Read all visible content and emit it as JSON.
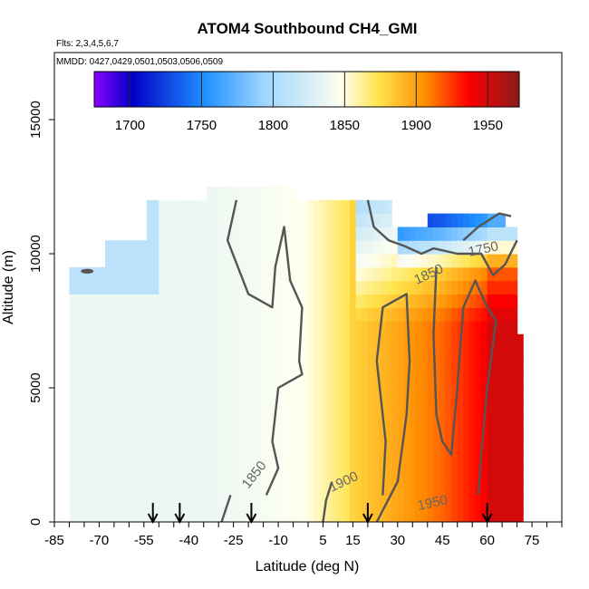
{
  "chart_data": {
    "type": "heatmap",
    "title": "ATOM4 Southbound CH4_GMI",
    "subtitle_flights": "Flts: 2,3,4,5,6,7",
    "subtitle_dates": "MMDD: 0427,0429,0501,0503,0506,0509",
    "xlabel": "Latitude (deg N)",
    "ylabel": "Altitude (m)",
    "xlim": [
      -85,
      85
    ],
    "ylim": [
      0,
      17500
    ],
    "x_ticks": [
      "-85",
      "-70",
      "-55",
      "-40",
      "-25",
      "-10",
      "5",
      "15",
      "30",
      "45",
      "60",
      "75"
    ],
    "y_ticks": [
      "0",
      "5000",
      "10000",
      "15000"
    ],
    "colorbar": {
      "range": [
        1675,
        1972
      ],
      "ticks": [
        "1700",
        "1750",
        "1800",
        "1850",
        "1900",
        "1950"
      ],
      "colors": [
        "#8b00ff",
        "#0000c8",
        "#1e90ff",
        "#87ceff",
        "#fffff0",
        "#ffe44c",
        "#ff8c00",
        "#ff0000",
        "#8b1a1a"
      ]
    },
    "contour_labels": [
      "1750",
      "1850",
      "1850",
      "1900",
      "1950"
    ],
    "flight_arrows_lat": [
      -52,
      -43,
      -19,
      20,
      60
    ],
    "grid": false,
    "legend": "colorbar top"
  }
}
